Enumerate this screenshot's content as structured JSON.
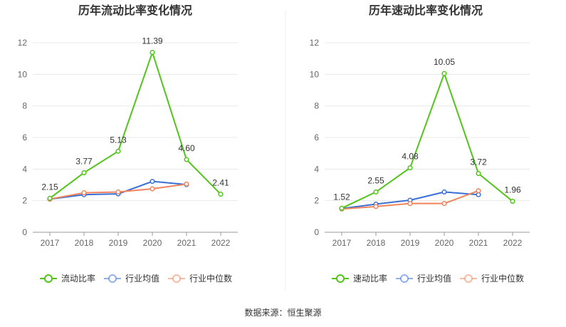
{
  "source_text": "数据来源：恒生聚源",
  "chart_data": [
    {
      "type": "line",
      "title": "历年流动比率变化情况",
      "categories": [
        "2017",
        "2018",
        "2019",
        "2020",
        "2021",
        "2022"
      ],
      "ylim": [
        0,
        12
      ],
      "yticks": [
        0,
        2,
        4,
        6,
        8,
        10,
        12
      ],
      "grid": true,
      "legend_position": "bottom",
      "series": [
        {
          "name": "流动比率",
          "color": "#52c41a",
          "values": [
            2.15,
            3.77,
            5.13,
            11.39,
            4.6,
            2.41
          ],
          "labels": [
            "2.15",
            "3.77",
            "5.13",
            "11.39",
            "4.60",
            "2.41"
          ]
        },
        {
          "name": "行业均值",
          "color": "#3a6fd8",
          "values": [
            2.1,
            2.38,
            2.43,
            3.22,
            3.02,
            null
          ]
        },
        {
          "name": "行业中位数",
          "color": "#f0845c",
          "values": [
            2.1,
            2.5,
            2.55,
            2.75,
            3.05,
            null
          ]
        }
      ]
    },
    {
      "type": "line",
      "title": "历年速动比率变化情况",
      "categories": [
        "2017",
        "2018",
        "2019",
        "2020",
        "2021",
        "2022"
      ],
      "ylim": [
        0,
        12
      ],
      "yticks": [
        0,
        2,
        4,
        6,
        8,
        10,
        12
      ],
      "grid": true,
      "legend_position": "bottom",
      "series": [
        {
          "name": "速动比率",
          "color": "#52c41a",
          "values": [
            1.52,
            2.55,
            4.08,
            10.05,
            3.72,
            1.96
          ],
          "labels": [
            "1.52",
            "2.55",
            "4.08",
            "10.05",
            "3.72",
            "1.96"
          ]
        },
        {
          "name": "行业均值",
          "color": "#3a6fd8",
          "values": [
            1.5,
            1.78,
            2.03,
            2.55,
            2.38,
            null
          ]
        },
        {
          "name": "行业中位数",
          "color": "#f0845c",
          "values": [
            1.47,
            1.63,
            1.82,
            1.82,
            2.63,
            null
          ]
        }
      ]
    }
  ]
}
